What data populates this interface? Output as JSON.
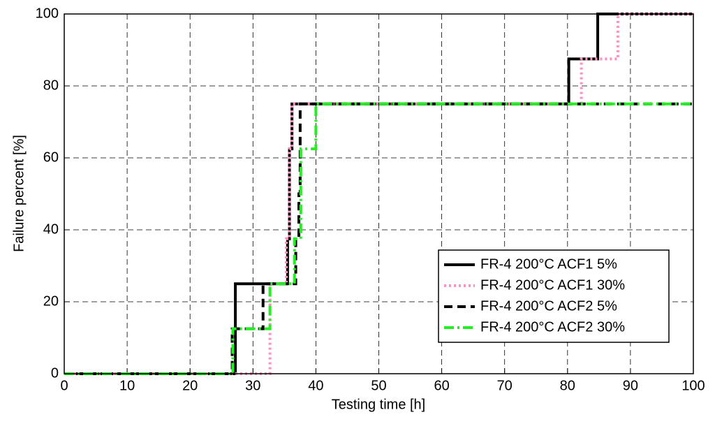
{
  "chart_data": {
    "type": "line",
    "xlabel": "Testing time [h]",
    "ylabel": "Failure percent [%]",
    "xlim": [
      0,
      100
    ],
    "ylim": [
      0,
      100
    ],
    "xticks": [
      0,
      10,
      20,
      30,
      40,
      50,
      60,
      70,
      80,
      90,
      100
    ],
    "yticks": [
      0,
      20,
      40,
      60,
      80,
      100
    ],
    "grid": true,
    "legend": "lower right",
    "series": [
      {
        "name": "FR-4 200°C ACF1 5%",
        "color": "#000000",
        "dash": "solid",
        "x": [
          0,
          27.2,
          27.2,
          35.5,
          35.5,
          35.8,
          35.8,
          36.2,
          36.2,
          80.2,
          80.2,
          84.8,
          84.8,
          100
        ],
        "values": [
          0,
          0,
          25,
          25,
          37.5,
          37.5,
          62.5,
          62.5,
          75,
          75,
          87.5,
          87.5,
          100,
          100
        ]
      },
      {
        "name": "FR-4 200°C ACF1 30%",
        "color": "#ff8fc0",
        "dash": "dotted",
        "x": [
          0,
          32.7,
          32.7,
          35.3,
          35.3,
          35.8,
          35.8,
          36.2,
          36.2,
          82.2,
          82.2,
          88,
          88,
          100
        ],
        "values": [
          0,
          0,
          25,
          25,
          37.5,
          37.5,
          62.5,
          62.5,
          75,
          75,
          87.5,
          87.5,
          100,
          100
        ]
      },
      {
        "name": "FR-4 200°C ACF2 5%",
        "color": "#000000",
        "dash": "dashed",
        "x": [
          0,
          26.7,
          26.7,
          31.6,
          31.6,
          36.8,
          36.8,
          37.3,
          37.3,
          37.5,
          37.5,
          100
        ],
        "values": [
          0,
          0,
          12.5,
          12.5,
          25,
          25,
          37.5,
          37.5,
          50,
          50,
          75,
          75
        ]
      },
      {
        "name": "FR-4 200°C ACF2 30%",
        "color": "#22ee22",
        "dash": "dashdot",
        "x": [
          0,
          26.8,
          26.8,
          32.7,
          32.7,
          36.6,
          36.6,
          37.6,
          37.6,
          40,
          40,
          100
        ],
        "values": [
          0,
          0,
          12.5,
          12.5,
          25,
          25,
          37.5,
          37.5,
          62.5,
          62.5,
          75,
          75
        ]
      }
    ]
  }
}
